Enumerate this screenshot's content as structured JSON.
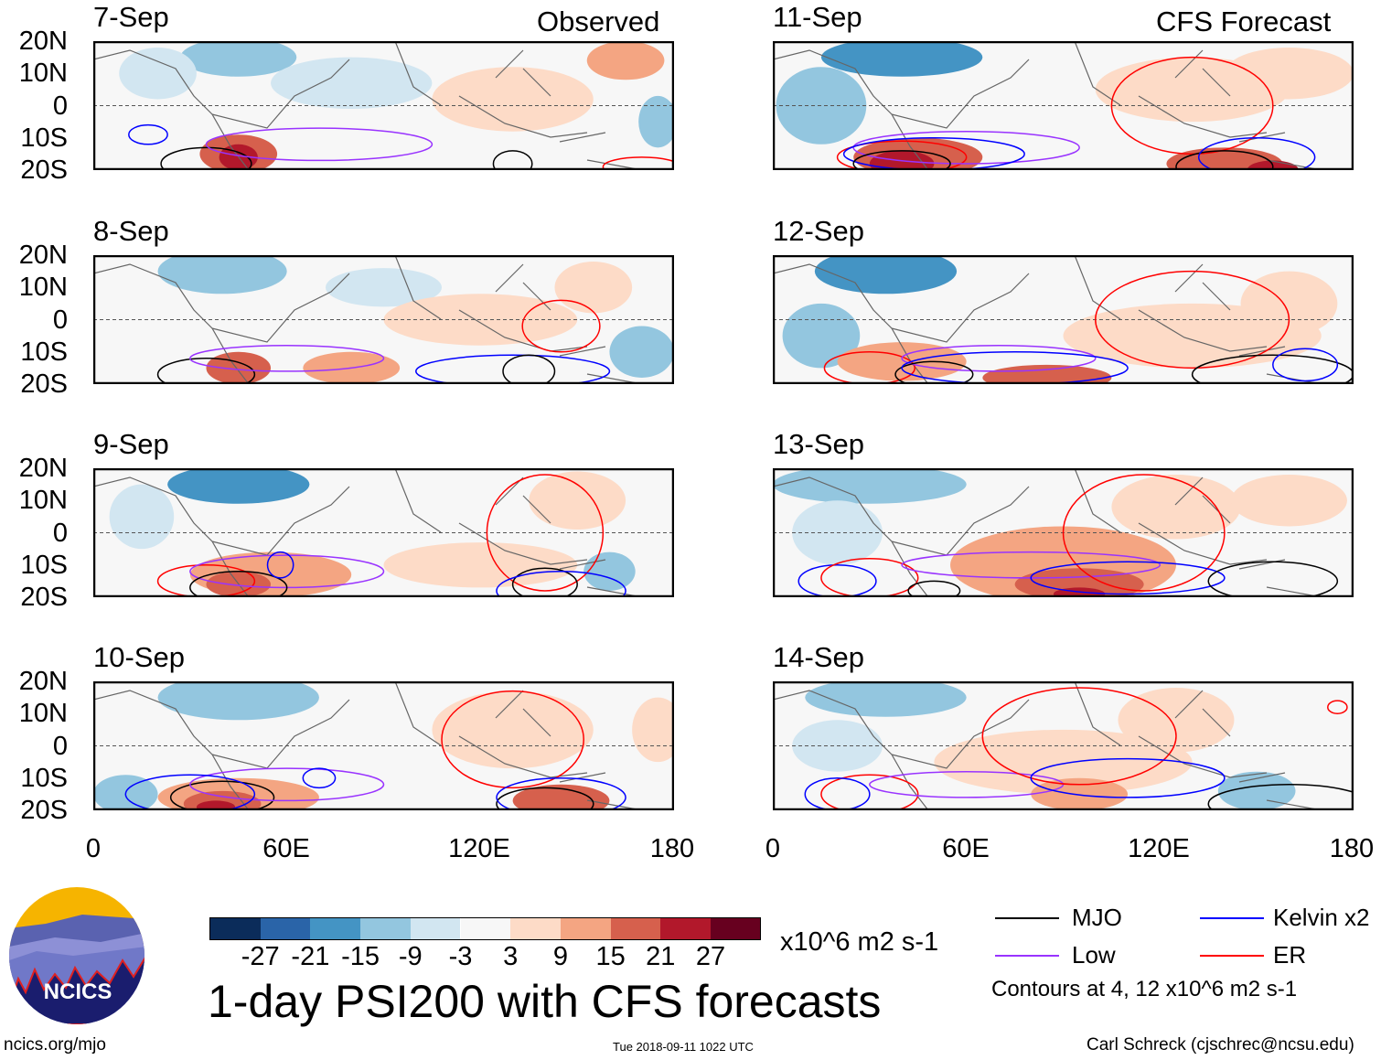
{
  "header": {
    "left_label": "Observed",
    "right_label": "CFS Forecast"
  },
  "lat_labels": [
    "20N",
    "10N",
    "0",
    "10S",
    "20S"
  ],
  "lon_labels": [
    "0",
    "60E",
    "120E",
    "180"
  ],
  "colors": {
    "levels": [
      "#0b2c5a",
      "#2a64a8",
      "#4494c4",
      "#93c6df",
      "#d2e6f1",
      "#f7f7f7",
      "#fddbc7",
      "#f4a582",
      "#d6604d",
      "#b2182b",
      "#67001f"
    ],
    "MJO": "#000000",
    "Low": "#9933ff",
    "Kelvin": "#0000ff",
    "ER": "#ff0000"
  },
  "panels": [
    {
      "date": "7-Sep",
      "shade": [
        [
          45,
          15,
          18,
          6,
          3
        ],
        [
          80,
          7,
          25,
          8,
          4
        ],
        [
          20,
          10,
          12,
          8,
          4
        ],
        [
          45,
          -15,
          12,
          6,
          8
        ],
        [
          45,
          -16,
          6,
          4,
          9
        ],
        [
          130,
          2,
          25,
          10,
          6
        ],
        [
          165,
          14,
          12,
          6,
          7
        ],
        [
          175,
          -5,
          6,
          8,
          3
        ]
      ],
      "contours": [
        [
          "MJO",
          35,
          -18,
          14,
          5
        ],
        [
          "Low",
          70,
          -12,
          35,
          5
        ],
        [
          "Kelvin",
          17,
          -9,
          6,
          3
        ],
        [
          "MJO",
          130,
          -18,
          6,
          4
        ],
        [
          "ER",
          170,
          -19,
          12,
          3
        ]
      ]
    },
    {
      "date": "11-Sep",
      "shade": [
        [
          40,
          15,
          25,
          6,
          2
        ],
        [
          15,
          0,
          14,
          12,
          3
        ],
        [
          45,
          -16,
          20,
          6,
          8
        ],
        [
          40,
          -18,
          10,
          4,
          9
        ],
        [
          130,
          5,
          30,
          10,
          6
        ],
        [
          140,
          -18,
          18,
          5,
          8
        ],
        [
          155,
          -20,
          8,
          3,
          9
        ],
        [
          160,
          10,
          20,
          8,
          6
        ]
      ],
      "contours": [
        [
          "ER",
          40,
          -16,
          20,
          5
        ],
        [
          "Low",
          60,
          -13,
          35,
          5
        ],
        [
          "Kelvin",
          50,
          -15,
          28,
          5
        ],
        [
          "MJO",
          40,
          -18,
          15,
          4
        ],
        [
          "ER",
          130,
          0,
          25,
          15
        ],
        [
          "MJO",
          140,
          -19,
          15,
          5
        ],
        [
          "Kelvin",
          150,
          -16,
          18,
          6
        ]
      ]
    },
    {
      "date": "8-Sep",
      "shade": [
        [
          40,
          15,
          20,
          7,
          3
        ],
        [
          90,
          10,
          18,
          6,
          4
        ],
        [
          45,
          -15,
          10,
          5,
          8
        ],
        [
          80,
          -15,
          15,
          5,
          7
        ],
        [
          120,
          0,
          30,
          8,
          6
        ],
        [
          155,
          10,
          12,
          8,
          6
        ],
        [
          170,
          -10,
          10,
          8,
          3
        ]
      ],
      "contours": [
        [
          "MJO",
          35,
          -17,
          15,
          5
        ],
        [
          "Low",
          60,
          -12,
          30,
          4
        ],
        [
          "Kelvin",
          130,
          -16,
          30,
          5
        ],
        [
          "MJO",
          135,
          -16,
          8,
          5
        ],
        [
          "ER",
          145,
          -2,
          12,
          8
        ]
      ]
    },
    {
      "date": "12-Sep",
      "shade": [
        [
          35,
          15,
          22,
          7,
          2
        ],
        [
          15,
          -5,
          12,
          10,
          3
        ],
        [
          40,
          -13,
          20,
          6,
          7
        ],
        [
          85,
          -18,
          20,
          4,
          8
        ],
        [
          130,
          -5,
          40,
          10,
          6
        ],
        [
          160,
          5,
          15,
          10,
          6
        ]
      ],
      "contours": [
        [
          "ER",
          30,
          -15,
          14,
          5
        ],
        [
          "Low",
          70,
          -12,
          30,
          4
        ],
        [
          "MJO",
          50,
          -17,
          12,
          4
        ],
        [
          "Kelvin",
          75,
          -15,
          35,
          5
        ],
        [
          "ER",
          130,
          0,
          30,
          15
        ],
        [
          "MJO",
          155,
          -17,
          25,
          6
        ],
        [
          "Kelvin",
          165,
          -14,
          10,
          5
        ]
      ]
    },
    {
      "date": "9-Sep",
      "shade": [
        [
          45,
          15,
          22,
          6,
          2
        ],
        [
          15,
          5,
          10,
          10,
          4
        ],
        [
          55,
          -13,
          25,
          7,
          7
        ],
        [
          45,
          -16,
          10,
          4,
          8
        ],
        [
          120,
          -10,
          30,
          7,
          6
        ],
        [
          150,
          10,
          15,
          9,
          6
        ],
        [
          160,
          -12,
          8,
          6,
          3
        ]
      ],
      "contours": [
        [
          "ER",
          35,
          -15,
          15,
          5
        ],
        [
          "Low",
          60,
          -12,
          30,
          5
        ],
        [
          "MJO",
          45,
          -17,
          15,
          5
        ],
        [
          "Kelvin",
          58,
          -10,
          4,
          4
        ],
        [
          "ER",
          140,
          0,
          18,
          18
        ],
        [
          "MJO",
          140,
          -16,
          10,
          5
        ],
        [
          "Kelvin",
          145,
          -18,
          20,
          6
        ]
      ]
    },
    {
      "date": "13-Sep",
      "shade": [
        [
          30,
          15,
          30,
          6,
          3
        ],
        [
          20,
          0,
          14,
          10,
          4
        ],
        [
          90,
          -10,
          35,
          12,
          7
        ],
        [
          95,
          -16,
          20,
          5,
          8
        ],
        [
          95,
          -19,
          8,
          2,
          9
        ],
        [
          125,
          8,
          20,
          10,
          6
        ],
        [
          160,
          10,
          18,
          8,
          6
        ]
      ],
      "contours": [
        [
          "Kelvin",
          20,
          -15,
          12,
          5
        ],
        [
          "ER",
          30,
          -14,
          15,
          6
        ],
        [
          "Low",
          80,
          -10,
          40,
          4
        ],
        [
          "MJO",
          50,
          -18,
          8,
          3
        ],
        [
          "ER",
          115,
          0,
          25,
          18
        ],
        [
          "Kelvin",
          110,
          -14,
          30,
          5
        ],
        [
          "MJO",
          155,
          -15,
          20,
          6
        ]
      ]
    },
    {
      "date": "10-Sep",
      "shade": [
        [
          45,
          15,
          25,
          7,
          3
        ],
        [
          10,
          -15,
          10,
          6,
          3
        ],
        [
          45,
          -16,
          25,
          6,
          7
        ],
        [
          40,
          -18,
          12,
          4,
          8
        ],
        [
          38,
          -19,
          6,
          2,
          9
        ],
        [
          130,
          5,
          25,
          12,
          6
        ],
        [
          175,
          5,
          8,
          10,
          6
        ],
        [
          145,
          -17,
          15,
          5,
          8
        ]
      ],
      "contours": [
        [
          "MJO",
          40,
          -16,
          16,
          5
        ],
        [
          "Low",
          60,
          -12,
          30,
          5
        ],
        [
          "Kelvin",
          30,
          -15,
          20,
          6
        ],
        [
          "Kelvin",
          70,
          -10,
          5,
          3
        ],
        [
          "ER",
          130,
          2,
          22,
          15
        ],
        [
          "MJO",
          140,
          -18,
          15,
          5
        ],
        [
          "Kelvin",
          145,
          -16,
          20,
          6
        ]
      ]
    },
    {
      "date": "14-Sep",
      "shade": [
        [
          35,
          15,
          25,
          6,
          3
        ],
        [
          20,
          0,
          14,
          8,
          4
        ],
        [
          90,
          -5,
          40,
          10,
          6
        ],
        [
          95,
          -15,
          15,
          5,
          7
        ],
        [
          125,
          8,
          18,
          10,
          6
        ],
        [
          150,
          -14,
          12,
          6,
          3
        ]
      ],
      "contours": [
        [
          "ER",
          30,
          -15,
          15,
          6
        ],
        [
          "Kelvin",
          20,
          -15,
          10,
          5
        ],
        [
          "Low",
          60,
          -12,
          30,
          4
        ],
        [
          "ER",
          95,
          3,
          30,
          15
        ],
        [
          "Kelvin",
          110,
          -10,
          30,
          6
        ],
        [
          "MJO",
          160,
          -18,
          25,
          6
        ],
        [
          "ER",
          175,
          12,
          3,
          2
        ]
      ]
    }
  ],
  "colorbar": {
    "labels": [
      "-27",
      "-21",
      "-15",
      "-9",
      "-3",
      "3",
      "9",
      "15",
      "21",
      "27"
    ],
    "units": "x10^6 m2 s-1"
  },
  "title": "1-day PSI200 with CFS forecasts",
  "legend": {
    "mjo": "MJO",
    "low": "Low",
    "kelvin": "Kelvin x2",
    "er": "ER",
    "note": "Contours at 4, 12 x10^6 m2 s-1"
  },
  "footer": {
    "url": "ncics.org/mjo",
    "timestamp": "Tue 2018-09-11 1022 UTC",
    "author": "Carl Schreck (cjschrec@ncsu.edu)"
  },
  "logo": {
    "text": "NCICS"
  }
}
